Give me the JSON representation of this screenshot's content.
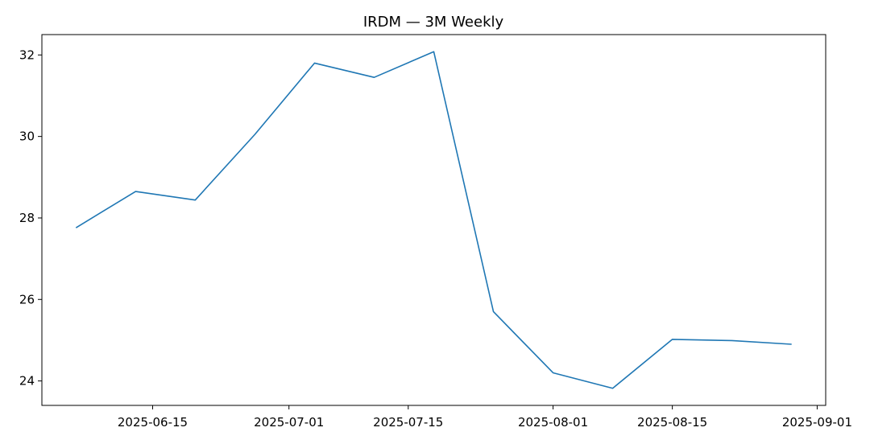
{
  "chart_data": {
    "type": "line",
    "title": "IRDM — 3M Weekly",
    "xlabel": "",
    "ylabel": "",
    "x_ticks": [
      "2025-06-15",
      "2025-07-01",
      "2025-07-15",
      "2025-08-01",
      "2025-08-15",
      "2025-09-01"
    ],
    "y_ticks": [
      24,
      26,
      28,
      30,
      32
    ],
    "xlim": [
      "2025-06-02",
      "2025-09-02"
    ],
    "ylim": [
      23.4,
      32.5
    ],
    "grid": false,
    "series": [
      {
        "color": "#1f77b4",
        "x": [
          "2025-06-06",
          "2025-06-13",
          "2025-06-20",
          "2025-06-27",
          "2025-07-04",
          "2025-07-11",
          "2025-07-18",
          "2025-07-25",
          "2025-08-01",
          "2025-08-08",
          "2025-08-15",
          "2025-08-22",
          "2025-08-29"
        ],
        "y": [
          27.76,
          28.65,
          28.44,
          30.05,
          31.8,
          31.45,
          32.08,
          25.7,
          24.2,
          23.82,
          25.02,
          24.99,
          24.9
        ]
      }
    ]
  }
}
